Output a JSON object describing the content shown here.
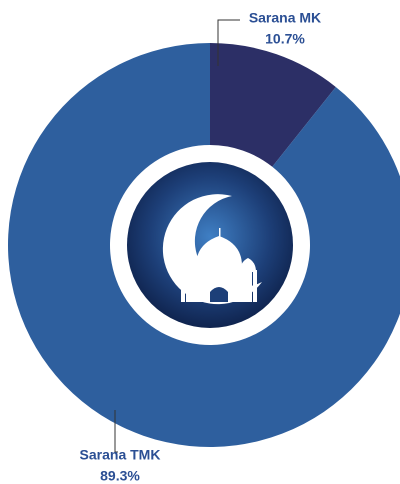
{
  "chart_data": {
    "type": "donut",
    "categories": [
      "Sarana MK",
      "Sarana TMK"
    ],
    "values": [
      10.7,
      89.3
    ],
    "value_labels": [
      "10.7%",
      "89.3%"
    ],
    "colors": [
      "#2c2f66",
      "#2e5f9e"
    ]
  }
}
